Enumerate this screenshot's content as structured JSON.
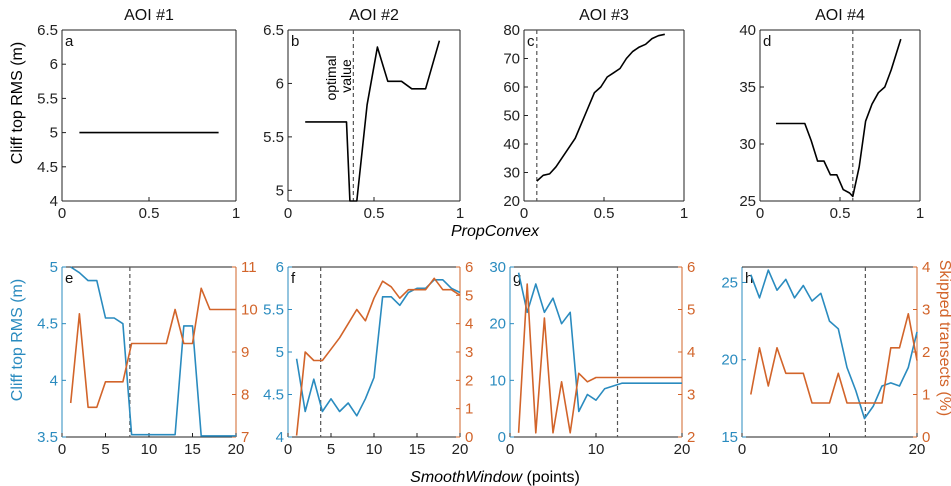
{
  "figure": {
    "top_xlabel": "PropConvex",
    "bottom_xlabel_italic": "SmoothWindow",
    "bottom_xlabel_units": " (points)",
    "top_ylabel": "Cliff top RMS (m)",
    "bottom_ylabel_left": "Cliff top RMS (m)",
    "bottom_ylabel_right": "Skipped transects (%)",
    "annotation": [
      "optimal",
      "value"
    ]
  },
  "colors": {
    "rms": "#2a8bbf",
    "skipped": "#d2642a",
    "line": "#000000"
  },
  "chart_data": [
    {
      "type": "line",
      "title": "AOI #1",
      "panel": "a",
      "xlim": [
        0,
        1
      ],
      "xticks": [
        "0",
        "0.5",
        "1"
      ],
      "ylim": [
        4,
        6.5
      ],
      "yticks": [
        "4",
        "4.5",
        "5",
        "5.5",
        "6",
        "6.5"
      ],
      "series": [
        {
          "x": [
            0.1,
            0.9
          ],
          "y": [
            5.0,
            5.0
          ]
        }
      ]
    },
    {
      "type": "line",
      "title": "AOI #2",
      "panel": "b",
      "xlim": [
        0,
        1
      ],
      "xticks": [
        "0",
        "0.5",
        "1"
      ],
      "ylim": [
        4.9,
        6.5
      ],
      "yticks": [
        "5",
        "5.5",
        "6",
        "6.5"
      ],
      "optimal_x": 0.38,
      "series": [
        {
          "x": [
            0.1,
            0.34,
            0.36,
            0.4,
            0.46,
            0.52,
            0.58,
            0.66,
            0.72,
            0.8,
            0.88
          ],
          "y": [
            5.64,
            5.64,
            4.9,
            4.9,
            5.8,
            6.34,
            6.02,
            6.02,
            5.95,
            5.95,
            6.4
          ]
        }
      ]
    },
    {
      "type": "line",
      "title": "AOI #3",
      "panel": "c",
      "xlim": [
        0,
        1
      ],
      "xticks": [
        "0",
        "0.5",
        "1"
      ],
      "ylim": [
        20,
        80
      ],
      "yticks": [
        "20",
        "30",
        "40",
        "50",
        "60",
        "70",
        "80"
      ],
      "optimal_x": 0.08,
      "series": [
        {
          "x": [
            0.08,
            0.12,
            0.16,
            0.2,
            0.26,
            0.32,
            0.38,
            0.44,
            0.48,
            0.52,
            0.56,
            0.6,
            0.64,
            0.68,
            0.72,
            0.76,
            0.8,
            0.84,
            0.88
          ],
          "y": [
            27,
            29,
            29.5,
            32,
            37,
            42,
            50,
            58,
            60,
            63.5,
            65,
            66.5,
            70,
            72.5,
            74,
            75,
            77,
            78,
            78.5
          ]
        }
      ]
    },
    {
      "type": "line",
      "title": "AOI #4",
      "panel": "d",
      "xlim": [
        0,
        1
      ],
      "xticks": [
        "0",
        "0.5",
        "1"
      ],
      "ylim": [
        25,
        40
      ],
      "yticks": [
        "25",
        "30",
        "35",
        "40"
      ],
      "optimal_x": 0.58,
      "series": [
        {
          "x": [
            0.1,
            0.2,
            0.28,
            0.32,
            0.36,
            0.4,
            0.44,
            0.48,
            0.52,
            0.56,
            0.58,
            0.62,
            0.66,
            0.7,
            0.74,
            0.78,
            0.82,
            0.88
          ],
          "y": [
            31.8,
            31.8,
            31.8,
            30.3,
            28.5,
            28.5,
            27.3,
            27.3,
            26.0,
            25.7,
            25.4,
            28.0,
            32.0,
            33.5,
            34.5,
            35.0,
            36.5,
            39.2
          ]
        }
      ]
    },
    {
      "type": "line",
      "panel": "e",
      "xlim": [
        0,
        20
      ],
      "xticks": [
        "0",
        "5",
        "10",
        "15",
        "20"
      ],
      "ylim": [
        3.5,
        5
      ],
      "yticks": [
        "3.5",
        "4",
        "4.5",
        "5"
      ],
      "y2lim": [
        7,
        11
      ],
      "y2ticks": [
        "7",
        "8",
        "9",
        "10",
        "11"
      ],
      "optimal_x": 7.8,
      "series": [
        {
          "name": "Cliff top RMS",
          "axis": "left",
          "x": [
            1,
            2,
            3,
            4,
            5,
            6,
            7,
            8,
            9,
            10,
            11,
            12,
            13,
            14,
            15,
            16,
            17,
            18,
            19,
            20
          ],
          "y": [
            5.0,
            4.95,
            4.88,
            4.88,
            4.55,
            4.55,
            4.5,
            3.52,
            3.52,
            3.52,
            3.52,
            3.52,
            3.52,
            4.48,
            4.48,
            3.51,
            3.51,
            3.51,
            3.51,
            3.51
          ]
        },
        {
          "name": "Skipped transects",
          "axis": "right",
          "x": [
            1,
            2,
            3,
            4,
            5,
            6,
            7,
            8,
            9,
            10,
            11,
            12,
            13,
            14,
            15,
            16,
            17,
            18,
            19,
            20
          ],
          "y": [
            7.8,
            9.9,
            7.7,
            7.7,
            8.3,
            8.3,
            8.3,
            9.2,
            9.2,
            9.2,
            9.2,
            9.2,
            10.0,
            9.2,
            9.2,
            10.5,
            10.0,
            10.0,
            10.0,
            10.0
          ]
        }
      ]
    },
    {
      "type": "line",
      "panel": "f",
      "xlim": [
        0,
        20
      ],
      "xticks": [
        "0",
        "5",
        "10",
        "15",
        "20"
      ],
      "ylim": [
        4,
        6
      ],
      "yticks": [
        "4",
        "4.5",
        "5",
        "5.5",
        "6"
      ],
      "y2lim": [
        0,
        6
      ],
      "y2ticks": [
        "0",
        "1",
        "2",
        "3",
        "4",
        "5",
        "6"
      ],
      "optimal_x": 3.8,
      "series": [
        {
          "name": "Cliff top RMS",
          "axis": "left",
          "x": [
            1,
            2,
            3,
            4,
            5,
            6,
            7,
            8,
            9,
            10,
            11,
            12,
            13,
            14,
            15,
            16,
            17,
            18,
            19,
            20
          ],
          "y": [
            4.92,
            4.3,
            4.68,
            4.3,
            4.45,
            4.3,
            4.4,
            4.25,
            4.45,
            4.7,
            5.65,
            5.65,
            5.55,
            5.7,
            5.75,
            5.75,
            5.85,
            5.85,
            5.75,
            5.7
          ]
        },
        {
          "name": "Skipped transects",
          "axis": "right",
          "x": [
            1,
            2,
            3,
            4,
            5,
            6,
            7,
            8,
            9,
            10,
            11,
            12,
            13,
            14,
            15,
            16,
            17,
            18,
            19,
            20
          ],
          "y": [
            0.05,
            3.0,
            2.7,
            2.7,
            3.1,
            3.5,
            4.0,
            4.5,
            4.1,
            4.9,
            5.5,
            5.3,
            4.9,
            5.2,
            5.2,
            5.2,
            5.6,
            5.2,
            5.2,
            5.0
          ]
        }
      ]
    },
    {
      "type": "line",
      "panel": "g",
      "xlim": [
        0,
        20
      ],
      "xticks": [
        "0",
        "10",
        "20"
      ],
      "ylim": [
        0,
        30
      ],
      "yticks": [
        "0",
        "10",
        "20",
        "30"
      ],
      "y2lim": [
        2,
        6
      ],
      "y2ticks": [
        "2",
        "3",
        "4",
        "5",
        "6"
      ],
      "optimal_x": 12.5,
      "series": [
        {
          "name": "Cliff top RMS",
          "axis": "left",
          "x": [
            1,
            2,
            3,
            4,
            5,
            6,
            7,
            8,
            9,
            10,
            11,
            12,
            13,
            14,
            15,
            16,
            17,
            18,
            19,
            20
          ],
          "y": [
            29,
            22,
            27,
            22,
            24.5,
            20,
            22,
            4.5,
            7.5,
            6.5,
            8.5,
            9.0,
            9.5,
            9.5,
            9.5,
            9.5,
            9.5,
            9.5,
            9.5,
            9.5
          ]
        },
        {
          "name": "Skipped transects",
          "axis": "right",
          "x": [
            1,
            2,
            3,
            4,
            5,
            6,
            7,
            8,
            9,
            10,
            11,
            12,
            13,
            14,
            15,
            16,
            17,
            18,
            19,
            20
          ],
          "y": [
            2.1,
            5.6,
            2.1,
            4.8,
            2.1,
            3.3,
            2.1,
            3.5,
            3.3,
            3.4,
            3.4,
            3.4,
            3.4,
            3.4,
            3.4,
            3.4,
            3.4,
            3.4,
            3.4,
            3.4
          ]
        }
      ]
    },
    {
      "type": "line",
      "panel": "h",
      "xlim": [
        0,
        20
      ],
      "xticks": [
        "0",
        "10",
        "20"
      ],
      "ylim": [
        15,
        26
      ],
      "yticks": [
        "15",
        "20",
        "25"
      ],
      "y2lim": [
        0,
        4
      ],
      "y2ticks": [
        "0",
        "1",
        "2",
        "3",
        "4"
      ],
      "optimal_x": 14.1,
      "series": [
        {
          "name": "Cliff top RMS",
          "axis": "left",
          "x": [
            1,
            2,
            3,
            4,
            5,
            6,
            7,
            8,
            9,
            10,
            11,
            12,
            13,
            14,
            15,
            16,
            17,
            18,
            19,
            20
          ],
          "y": [
            25.5,
            24.0,
            25.8,
            24.5,
            25.2,
            24.0,
            24.8,
            23.8,
            24.3,
            22.5,
            22.0,
            19.5,
            18.0,
            16.2,
            17.0,
            18.3,
            18.5,
            18.3,
            19.5,
            21.8
          ]
        },
        {
          "name": "Skipped transects",
          "axis": "right",
          "x": [
            1,
            2,
            3,
            4,
            5,
            6,
            7,
            8,
            9,
            10,
            11,
            12,
            13,
            14,
            15,
            16,
            17,
            18,
            19,
            20
          ],
          "y": [
            1.0,
            2.1,
            1.2,
            2.1,
            1.5,
            1.5,
            1.5,
            0.8,
            0.8,
            0.8,
            1.5,
            0.8,
            0.8,
            0.8,
            0.8,
            0.8,
            2.1,
            2.1,
            2.9,
            1.8
          ]
        }
      ]
    }
  ]
}
